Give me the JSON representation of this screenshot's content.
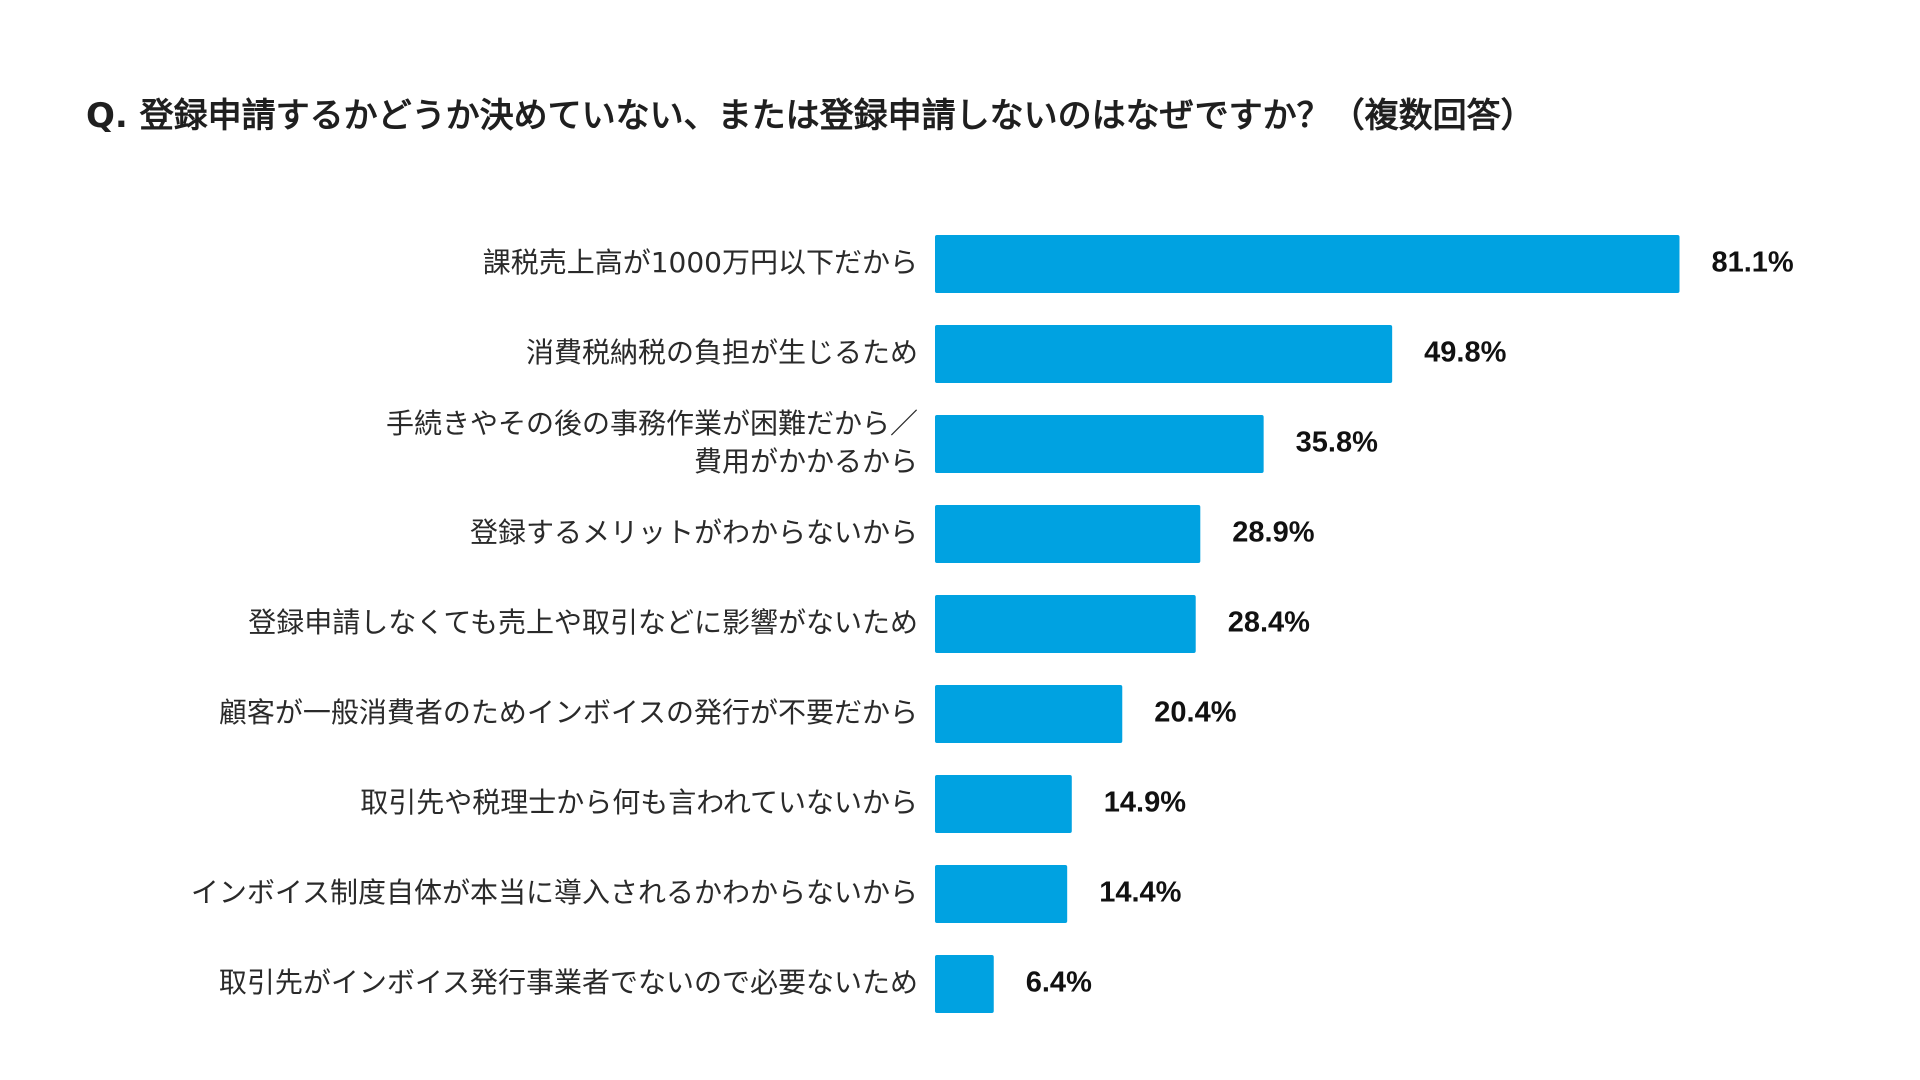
{
  "chart_data": {
    "type": "bar",
    "orientation": "horizontal",
    "title": "Q. 登録申請するかどうか決めていない、または登録申請しないのはなぜですか？（複数回答）",
    "categories": [
      [
        "課税売上高が1000万円以下だから"
      ],
      [
        "消費税納税の負担が生じるため"
      ],
      [
        "手続きやその後の事務作業が困難だから／",
        "費用がかかるから"
      ],
      [
        "登録するメリットがわからないから"
      ],
      [
        "登録申請しなくても売上や取引などに影響がないため"
      ],
      [
        "顧客が一般消費者のためインボイスの発行が不要だから"
      ],
      [
        "取引先や税理士から何も言われていないから"
      ],
      [
        "インボイス制度自体が本当に導入されるかわからないから"
      ],
      [
        "取引先がインボイス発行事業者でないので必要ないため"
      ]
    ],
    "values": [
      81.1,
      49.8,
      35.8,
      28.9,
      28.4,
      20.4,
      14.9,
      14.4,
      6.4
    ],
    "value_labels": [
      "81.1%",
      "49.8%",
      "35.8%",
      "28.9%",
      "28.4%",
      "20.4%",
      "14.9%",
      "14.4%",
      "6.4%"
    ],
    "xlim": [
      0,
      100
    ],
    "bar_color": "#00a2e1",
    "grid": false,
    "legend": "none"
  }
}
